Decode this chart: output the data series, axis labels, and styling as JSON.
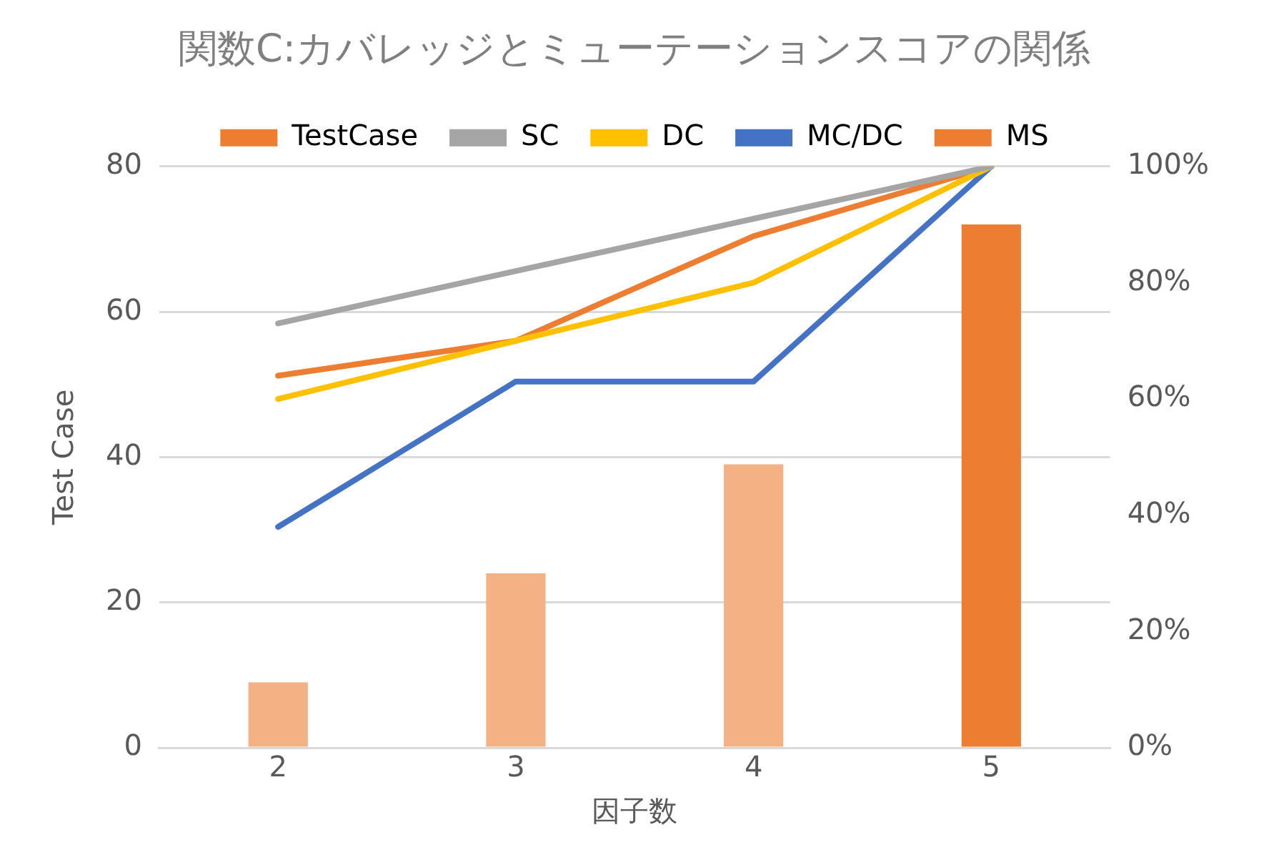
{
  "chart_data": {
    "type": "bar",
    "title": "関数C:カバレッジとミューテーションスコアの関係",
    "xlabel": "因子数",
    "ylabel": "Test Case",
    "categories": [
      "2",
      "3",
      "4",
      "5"
    ],
    "series": [
      {
        "name": "TestCase",
        "color": "#ed7d31",
        "colors": [
          "#f4b183",
          "#f4b183",
          "#f4b183",
          "#ed7d31"
        ],
        "values": [
          9,
          24,
          39,
          72
        ]
      },
      {
        "name": "SC",
        "type": "line",
        "axis": "y2",
        "color": "#a5a5a5",
        "values": [
          73,
          82,
          91,
          100
        ]
      },
      {
        "name": "DC",
        "type": "line",
        "axis": "y2",
        "color": "#ffc000",
        "values": [
          60,
          70,
          80,
          100
        ]
      },
      {
        "name": "MC/DC",
        "type": "line",
        "axis": "y2",
        "color": "#4472c4",
        "values": [
          38,
          63,
          63,
          100
        ]
      },
      {
        "name": "MS",
        "type": "line",
        "axis": "y2",
        "color": "#ed7d31",
        "values": [
          64,
          70,
          88,
          100
        ]
      }
    ],
    "ylim": [
      0,
      80
    ],
    "yticks": [
      0,
      20,
      40,
      60,
      80
    ],
    "y2lim": [
      0,
      100
    ],
    "y2ticks": [
      {
        "value": 0,
        "label": "0%"
      },
      {
        "value": 20,
        "label": "20%"
      },
      {
        "value": 40,
        "label": "40%"
      },
      {
        "value": 60,
        "label": "60%"
      },
      {
        "value": 80,
        "label": "80%"
      },
      {
        "value": 100,
        "label": "100%"
      }
    ],
    "grid": "y",
    "legend": "top",
    "marker": "none",
    "line_style": "solid"
  }
}
